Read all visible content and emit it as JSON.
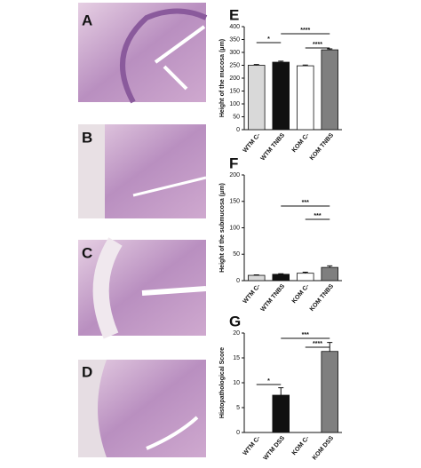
{
  "panels": [
    "A",
    "B",
    "C",
    "D"
  ],
  "chart_data": [
    {
      "type": "bar",
      "panel_label": "E",
      "ylabel": "Height of the mucosa (μm)",
      "categories": [
        "WTM C-",
        "WTM TNBS",
        "KOM C-",
        "KOM TNBS"
      ],
      "values": [
        250,
        262,
        248,
        310
      ],
      "errors": [
        3,
        4,
        3,
        4
      ],
      "colors": [
        "#d9d9d9",
        "#111111",
        "#ffffff",
        "#7f7f7f"
      ],
      "ylim": [
        0,
        400
      ],
      "yticks": [
        0,
        50,
        100,
        150,
        200,
        250,
        300,
        350,
        400
      ],
      "annotations": [
        "*",
        "****",
        "****"
      ]
    },
    {
      "type": "bar",
      "panel_label": "F",
      "ylabel": "Height of the submucosa (μm)",
      "categories": [
        "WTM C-",
        "WTM TNBS",
        "KOM C-",
        "KOM TNBS"
      ],
      "values": [
        10,
        12,
        14,
        25
      ],
      "errors": [
        1,
        1,
        2,
        3
      ],
      "colors": [
        "#d9d9d9",
        "#111111",
        "#ffffff",
        "#7f7f7f"
      ],
      "ylim": [
        0,
        200
      ],
      "yticks": [
        0,
        50,
        100,
        150,
        200
      ],
      "annotations": [
        "***",
        "***"
      ]
    },
    {
      "type": "bar",
      "panel_label": "G",
      "ylabel": "Histopathological Score",
      "categories": [
        "WTM C-",
        "WTM DSS",
        "KOM C-",
        "KOM DSS"
      ],
      "values": [
        0,
        7.5,
        0,
        16.3
      ],
      "errors": [
        0,
        1.5,
        0,
        1.8
      ],
      "colors": [
        "#d9d9d9",
        "#111111",
        "#ffffff",
        "#7f7f7f"
      ],
      "ylim": [
        0,
        20
      ],
      "yticks": [
        0,
        5,
        10,
        15,
        20
      ],
      "annotations": [
        "*",
        "***",
        "****"
      ]
    }
  ]
}
